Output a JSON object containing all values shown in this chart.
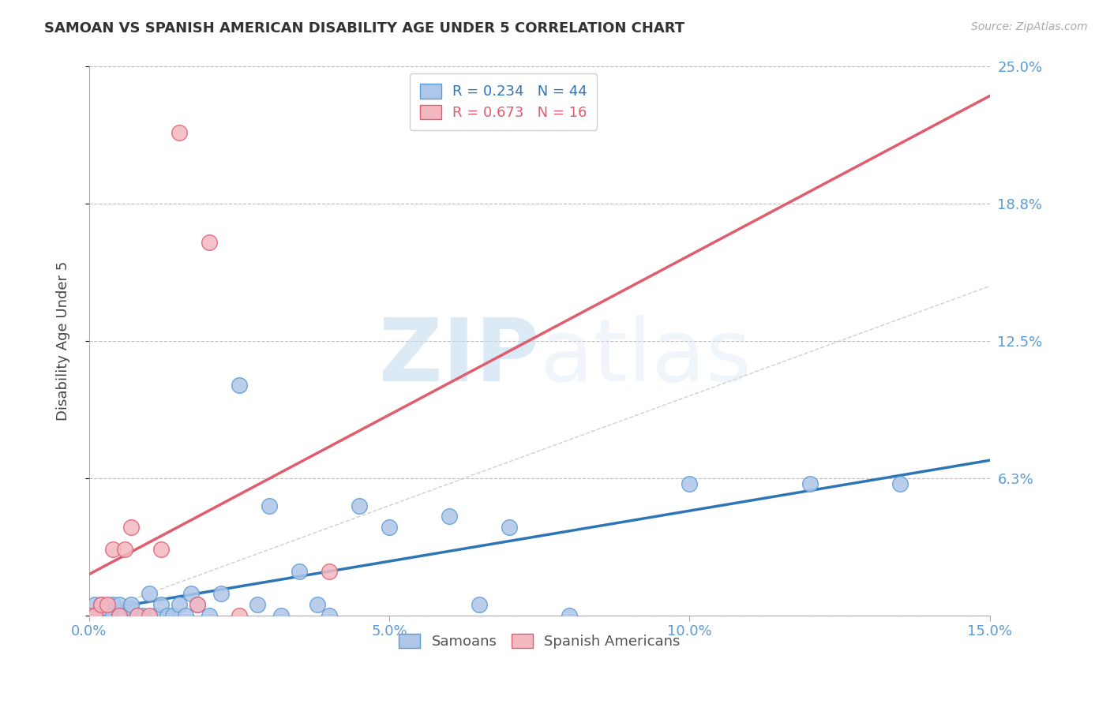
{
  "title": "SAMOAN VS SPANISH AMERICAN DISABILITY AGE UNDER 5 CORRELATION CHART",
  "source_text": "Source: ZipAtlas.com",
  "ylabel": "Disability Age Under 5",
  "xlim": [
    0,
    0.15
  ],
  "ylim": [
    0,
    0.25
  ],
  "ytick_vals": [
    0,
    0.0625,
    0.125,
    0.1875,
    0.25
  ],
  "ytick_labels": [
    "",
    "6.3%",
    "12.5%",
    "18.8%",
    "25.0%"
  ],
  "xtick_vals": [
    0,
    0.05,
    0.1,
    0.15
  ],
  "xtick_labels": [
    "0.0%",
    "5.0%",
    "10.0%",
    "15.0%"
  ],
  "group1_name": "Samoans",
  "group1_color": "#aec6e8",
  "group1_edge_color": "#5b9bd5",
  "group1_line_color": "#2e75b6",
  "group1_R": 0.234,
  "group1_N": 44,
  "group2_name": "Spanish Americans",
  "group2_color": "#f4b8c1",
  "group2_edge_color": "#e05c6e",
  "group2_line_color": "#e05c6e",
  "group2_R": 0.673,
  "group2_N": 16,
  "watermark_zip": "ZIP",
  "watermark_atlas": "atlas",
  "background_color": "#ffffff",
  "tick_label_color": "#5b9bd5",
  "samoans_x": [
    0.0,
    0.001,
    0.001,
    0.002,
    0.002,
    0.003,
    0.003,
    0.004,
    0.004,
    0.005,
    0.005,
    0.006,
    0.006,
    0.007,
    0.007,
    0.008,
    0.009,
    0.01,
    0.011,
    0.012,
    0.013,
    0.014,
    0.015,
    0.016,
    0.017,
    0.018,
    0.02,
    0.022,
    0.025,
    0.028,
    0.03,
    0.032,
    0.035,
    0.038,
    0.04,
    0.045,
    0.05,
    0.06,
    0.065,
    0.07,
    0.08,
    0.1,
    0.12,
    0.135
  ],
  "samoans_y": [
    0.0,
    0.0,
    0.005,
    0.0,
    0.005,
    0.0,
    0.003,
    0.005,
    0.0,
    0.0,
    0.005,
    0.0,
    0.0,
    0.003,
    0.005,
    0.0,
    0.0,
    0.01,
    0.0,
    0.005,
    0.0,
    0.0,
    0.005,
    0.0,
    0.01,
    0.005,
    0.0,
    0.01,
    0.105,
    0.005,
    0.05,
    0.0,
    0.02,
    0.005,
    0.0,
    0.05,
    0.04,
    0.045,
    0.005,
    0.04,
    0.0,
    0.06,
    0.06,
    0.06
  ],
  "spanish_x": [
    0.0,
    0.001,
    0.002,
    0.003,
    0.004,
    0.005,
    0.006,
    0.007,
    0.008,
    0.01,
    0.012,
    0.015,
    0.018,
    0.02,
    0.025,
    0.04
  ],
  "spanish_y": [
    0.0,
    0.0,
    0.005,
    0.005,
    0.03,
    0.0,
    0.03,
    0.04,
    0.0,
    0.0,
    0.03,
    0.22,
    0.005,
    0.17,
    0.0,
    0.02
  ]
}
